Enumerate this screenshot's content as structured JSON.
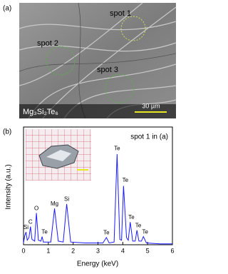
{
  "panel_a": {
    "label": "(a)",
    "spots": [
      "spot 1",
      "spot 2",
      "spot 3"
    ],
    "formula": "Mg₃Si₂Te₆",
    "scale_bar": "30 µm"
  },
  "chart_data": {
    "type": "line",
    "panel_label": "(b)",
    "xlabel": "Energy (keV)",
    "ylabel": "Intensity (a.u.)",
    "xlim": [
      0,
      6
    ],
    "xticks": [
      0,
      1,
      2,
      3,
      4,
      5,
      6
    ],
    "ylim": [
      0,
      130
    ],
    "x": [
      0,
      0.05,
      0.1,
      0.15,
      0.22,
      0.28,
      0.34,
      0.45,
      0.52,
      0.6,
      0.7,
      0.75,
      0.8,
      1.1,
      1.25,
      1.4,
      1.6,
      1.74,
      1.9,
      2.5,
      3.2,
      3.34,
      3.45,
      3.65,
      3.77,
      3.88,
      3.95,
      4.03,
      4.15,
      4.22,
      4.3,
      4.4,
      4.5,
      4.57,
      4.65,
      4.75,
      4.83,
      4.95,
      5.5,
      6
    ],
    "series": [
      {
        "name": "spot 1 in (a)",
        "color": "#1a1aff",
        "values": [
          2,
          10,
          14,
          5,
          8,
          20,
          6,
          4,
          35,
          5,
          4,
          9,
          3,
          3,
          40,
          4,
          3,
          45,
          3,
          2,
          2,
          8,
          2,
          3,
          100,
          6,
          5,
          65,
          8,
          5,
          25,
          4,
          4,
          16,
          4,
          4,
          9,
          2,
          1,
          1
        ]
      }
    ],
    "annotations": [
      {
        "text": "Si",
        "x": 0.1,
        "y": 19
      },
      {
        "text": "C",
        "x": 0.28,
        "y": 25
      },
      {
        "text": "O",
        "x": 0.52,
        "y": 40
      },
      {
        "text": "Te",
        "x": 0.85,
        "y": 14
      },
      {
        "text": "Mg",
        "x": 1.25,
        "y": 45
      },
      {
        "text": "Si",
        "x": 1.74,
        "y": 50
      },
      {
        "text": "Te",
        "x": 3.34,
        "y": 13
      },
      {
        "text": "Te",
        "x": 3.77,
        "y": 106
      },
      {
        "text": "Te",
        "x": 4.1,
        "y": 71
      },
      {
        "text": "Te",
        "x": 4.35,
        "y": 30
      },
      {
        "text": "Te",
        "x": 4.62,
        "y": 21
      },
      {
        "text": "Te",
        "x": 4.9,
        "y": 14
      }
    ]
  }
}
